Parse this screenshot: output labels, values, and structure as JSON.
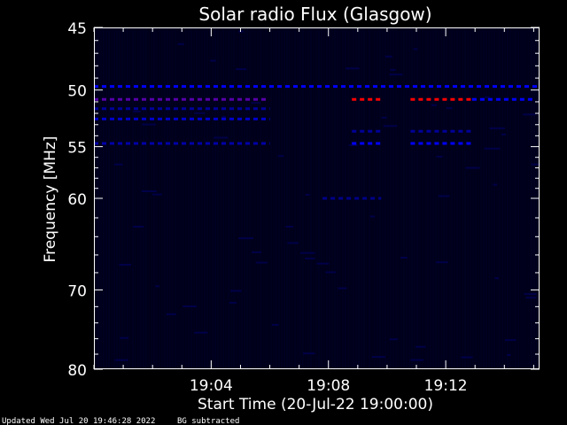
{
  "chart_data": {
    "type": "heatmap",
    "title": "Solar radio Flux (Glasgow)",
    "xlabel": "Start Time (20-Jul-22 19:00:00)",
    "ylabel": "Frequency [MHz]",
    "x_range_minutes": [
      0,
      15.2
    ],
    "x_ticks": [
      {
        "minute": 4,
        "label": "19:04"
      },
      {
        "minute": 8,
        "label": "19:08"
      },
      {
        "minute": 12,
        "label": "19:12"
      }
    ],
    "y_range_mhz": [
      45,
      80
    ],
    "y_scale": "log",
    "y_ticks": [
      {
        "mhz": 45,
        "label": "45"
      },
      {
        "mhz": 50,
        "label": "50"
      },
      {
        "mhz": 55,
        "label": "55"
      },
      {
        "mhz": 60,
        "label": "60"
      },
      {
        "mhz": 70,
        "label": "70"
      },
      {
        "mhz": 80,
        "label": "80"
      }
    ],
    "colors": {
      "background": "#00001a",
      "low": "#000033",
      "medium": "#0000ff",
      "high": "#ff0000"
    },
    "features": [
      {
        "kind": "dashed-band",
        "mhz": 49.7,
        "t0": 0,
        "t1": 15.2,
        "color": "#0000ff"
      },
      {
        "kind": "dashed-band",
        "mhz": 50.8,
        "t0": 0,
        "t1": 5.9,
        "color": "#5500aa"
      },
      {
        "kind": "dashed-band",
        "mhz": 50.8,
        "t0": 8.8,
        "t1": 9.8,
        "color": "#ff0000"
      },
      {
        "kind": "dashed-band",
        "mhz": 50.8,
        "t0": 10.8,
        "t1": 12.9,
        "color": "#ff0000"
      },
      {
        "kind": "dashed-band",
        "mhz": 50.8,
        "t0": 12.9,
        "t1": 15.0,
        "color": "#0000ff"
      },
      {
        "kind": "dashed-band",
        "mhz": 51.6,
        "t0": 0,
        "t1": 6.0,
        "color": "#000099"
      },
      {
        "kind": "dashed-band",
        "mhz": 52.5,
        "t0": 0,
        "t1": 6.0,
        "color": "#0000cc"
      },
      {
        "kind": "dashed-band",
        "mhz": 53.6,
        "t0": 8.8,
        "t1": 9.8,
        "color": "#000099"
      },
      {
        "kind": "dashed-band",
        "mhz": 53.6,
        "t0": 10.8,
        "t1": 12.9,
        "color": "#000099"
      },
      {
        "kind": "dashed-band",
        "mhz": 54.7,
        "t0": 0,
        "t1": 6.0,
        "color": "#0000aa"
      },
      {
        "kind": "dashed-band",
        "mhz": 54.7,
        "t0": 8.8,
        "t1": 9.8,
        "color": "#0000ff"
      },
      {
        "kind": "dashed-band",
        "mhz": 54.7,
        "t0": 10.8,
        "t1": 12.9,
        "color": "#0000ff"
      },
      {
        "kind": "dashed-band",
        "mhz": 60.0,
        "t0": 7.8,
        "t1": 9.8,
        "color": "#000088"
      }
    ]
  },
  "footer": {
    "updated": "Updated Wed Jul 20 19:46:28 2022",
    "note": "BG subtracted"
  }
}
